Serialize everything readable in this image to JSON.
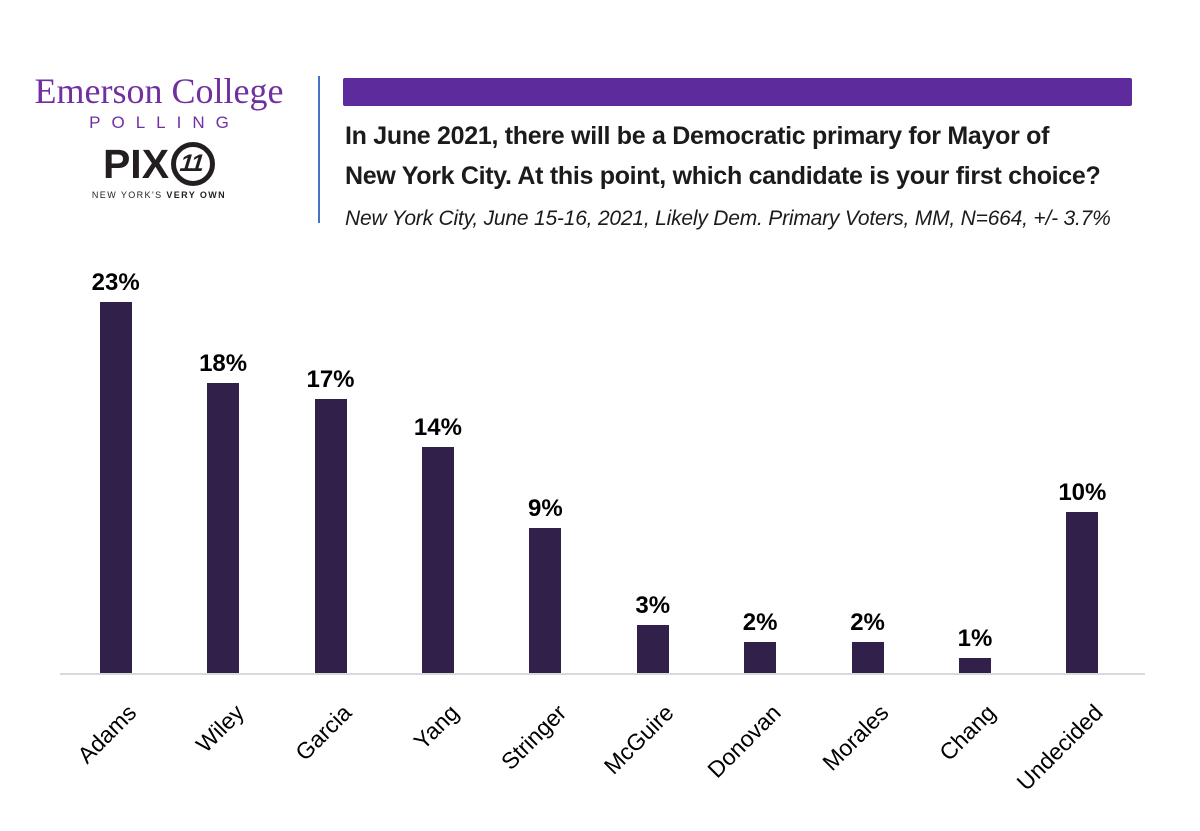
{
  "brand": {
    "name": "Emerson College",
    "polling": "POLLING",
    "pix_text": "PIX",
    "pix_number": "11",
    "tagline_regular": "NEW YORK'S",
    "tagline_bold": "VERY OWN"
  },
  "header": {
    "title_lines": [
      "In June 2021, there will be a Democratic primary for Mayor of",
      "New York City. At this point, which candidate is your first choice?"
    ],
    "subtitle": "New York City, June 15-16, 2021, Likely Dem. Primary Voters, MM, N=664, +/- 3.7%"
  },
  "colors": {
    "accent_purple": "#5e2b9c",
    "logo_purple": "#7030a0",
    "bar_fill": "#31204a",
    "divider_blue": "#4472c4",
    "axis_line": "#d9d9d9",
    "pix_black": "#231f20"
  },
  "chart_data": {
    "type": "bar",
    "title": "In June 2021, there will be a Democratic primary for Mayor of New York City. At this point, which candidate is your first choice?",
    "subtitle": "New York City, June 15-16, 2021, Likely Dem. Primary Voters, MM, N=664, +/- 3.7%",
    "categories": [
      "Adams",
      "Wiley",
      "Garcia",
      "Yang",
      "Stringer",
      "McGuire",
      "Donovan",
      "Morales",
      "Chang",
      "Undecided"
    ],
    "values": [
      23,
      18,
      17,
      14,
      9,
      3,
      2,
      2,
      1,
      10
    ],
    "value_labels": [
      "23%",
      "18%",
      "17%",
      "14%",
      "9%",
      "3%",
      "2%",
      "2%",
      "1%",
      "10%"
    ],
    "xlabel": "",
    "ylabel": "",
    "ylim": [
      0,
      26.8
    ],
    "grid": false,
    "legend": false,
    "bar_color": "#31204a",
    "x_label_rotation_deg": 45
  }
}
